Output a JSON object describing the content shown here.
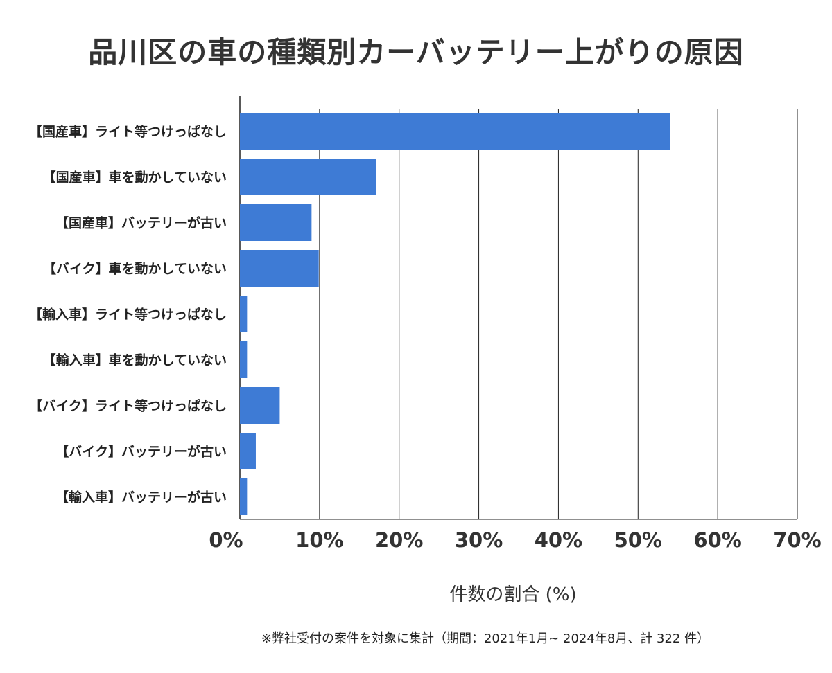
{
  "chart_data": {
    "type": "bar",
    "orientation": "horizontal",
    "title": "品川区の車の種類別カーバッテリー上がりの原因",
    "xlabel": "件数の割合 (%)",
    "ylabel": "",
    "categories": [
      "【国産車】ライト等つけっぱなし",
      "【国産車】車を動かしていない",
      "【国産車】バッテリーが古い",
      "【バイク】車を動かしていない",
      "【輸入車】ライト等つけっぱなし",
      "【輸入車】車を動かしていない",
      "【バイク】ライト等つけっぱなし",
      "【バイク】バッテリーが古い",
      "【輸入車】バッテリーが古い"
    ],
    "values": [
      54.0,
      17.1,
      9.0,
      9.9,
      0.9,
      0.9,
      5.0,
      2.0,
      0.9
    ],
    "xlim": [
      0,
      70
    ],
    "xticks": [
      0,
      10,
      20,
      30,
      40,
      50,
      60,
      70
    ],
    "xtick_labels": [
      "0%",
      "10%",
      "20%",
      "30%",
      "40%",
      "50%",
      "60%",
      "70%"
    ],
    "grid": true,
    "bar_color": "#3e7bd5",
    "footnote": "※弊社受付の案件を対象に集計（期間：2021年1月~ 2024年8月、計 322 件）"
  }
}
